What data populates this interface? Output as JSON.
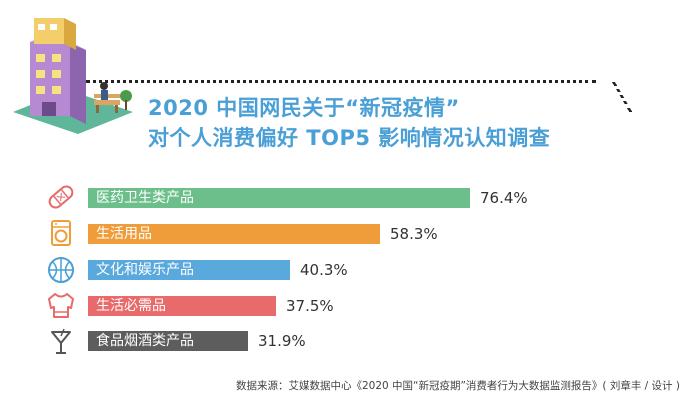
{
  "header": {
    "title_line1": "2020 中国网民关于“新冠疫情”",
    "title_line2": "对个人消费偏好 TOP5 影响情况认知调查"
  },
  "chart_data": {
    "type": "bar",
    "orientation": "horizontal",
    "categories": [
      "医药卫生类产品",
      "生活用品",
      "文化和娱乐产品",
      "生活必需品",
      "食品烟酒类产品"
    ],
    "values": [
      76.4,
      58.3,
      40.3,
      37.5,
      31.9
    ],
    "value_labels": [
      "76.4%",
      "58.3%",
      "40.3%",
      "37.5%",
      "31.9%"
    ],
    "colors": [
      "#6cbf8a",
      "#ef9d3a",
      "#5aa9dd",
      "#e86a6a",
      "#5d5d5d"
    ],
    "icons": [
      "bandage-icon",
      "washing-machine-icon",
      "basketball-icon",
      "sweater-icon",
      "cocktail-glass-icon"
    ],
    "xlim": [
      0,
      100
    ],
    "title": "2020 中国网民关于“新冠疫情” 对个人消费偏好 TOP5 影响情况认知调查"
  },
  "footer": {
    "source": "数据来源：艾媒数据中心《2020 中国“新冠疫期”消费者行为大数据监测报告》( 刘章丰 / 设计 )"
  }
}
